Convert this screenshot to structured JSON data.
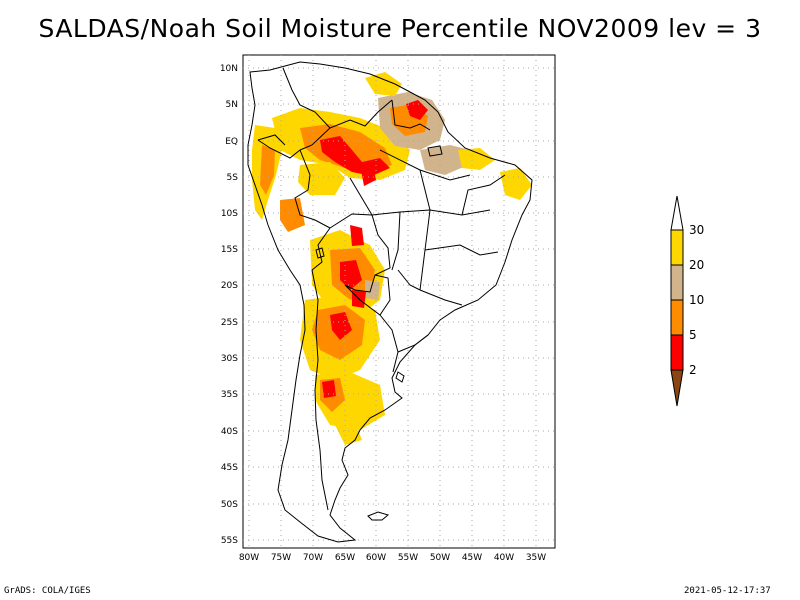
{
  "title": "SALDAS/Noah Soil Moisture Percentile NOV2009 lev = 3",
  "footer": {
    "left": "GrADS: COLA/IGES",
    "right": "2021-05-12-17:37"
  },
  "map": {
    "lon_range": [
      -81,
      -32
    ],
    "lat_range": [
      -56,
      11
    ],
    "lat_ticks": [
      "10N",
      "5N",
      "EQ",
      "5S",
      "10S",
      "15S",
      "20S",
      "25S",
      "30S",
      "35S",
      "40S",
      "45S",
      "50S",
      "55S"
    ],
    "lon_ticks": [
      "80W",
      "75W",
      "70W",
      "65W",
      "60W",
      "55W",
      "50W",
      "45W",
      "40W",
      "35W"
    ],
    "grid": "dotted"
  },
  "legend": {
    "labels": [
      "2",
      "5",
      "10",
      "20",
      "30"
    ],
    "colors": {
      "below_2": "#8b4513",
      "2_5": "#ff0000",
      "5_10": "#ff8c00",
      "10_20": "#d2b48c",
      "20_30": "#ffd700",
      "above_30": "#ffffff"
    }
  }
}
